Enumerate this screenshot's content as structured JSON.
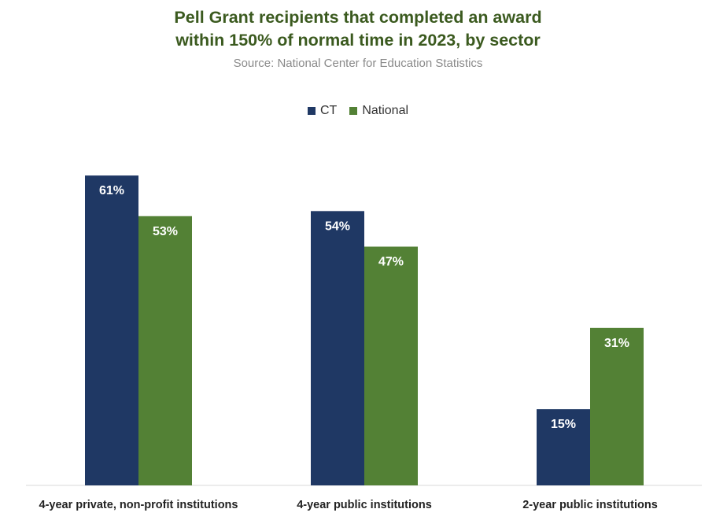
{
  "chart_data": {
    "type": "bar",
    "title_lines": [
      "Pell Grant recipients that completed an award",
      "within 150% of normal time in 2023, by sector"
    ],
    "subtitle": "Source: National Center for Education Statistics",
    "categories": [
      "4-year private, non-profit institutions",
      "4-year public institutions",
      "2-year public institutions"
    ],
    "series": [
      {
        "name": "CT",
        "values": [
          61,
          54,
          15
        ],
        "color": "#1f3864"
      },
      {
        "name": "National",
        "values": [
          53,
          47,
          31
        ],
        "color": "#538135"
      }
    ],
    "value_suffix": "%",
    "ylim": [
      0,
      70
    ],
    "legend_position": "top-center",
    "grid": false,
    "axis_line_color": "#d9d9d9"
  }
}
